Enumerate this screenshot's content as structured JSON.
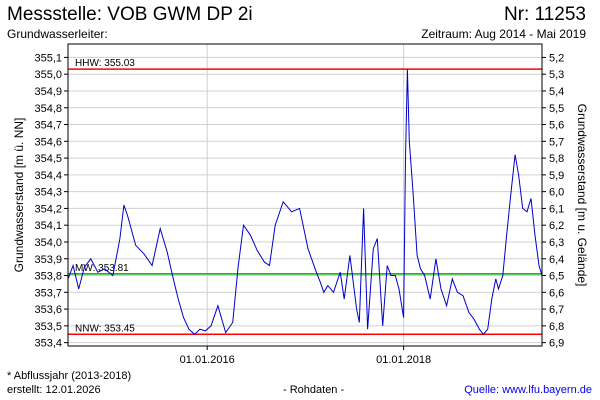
{
  "header": {
    "title": "Messstelle: VOB GWM DP 2i",
    "number": "Nr: 11253",
    "subtitle_left": "Grundwasserleiter:",
    "subtitle_right": "Zeitraum: Aug 2014 - Mai 2019"
  },
  "footer": {
    "note": "* Abflussjahr (2013-2018)",
    "created": "erstellt:  12.01.2026",
    "center": "- Rohdaten -",
    "source": "Quelle:  www.lfu.bayern.de"
  },
  "colors": {
    "line": "#0000cc",
    "high": "#ff0000",
    "mean": "#00aa00",
    "low": "#ff0000"
  },
  "chart_data": {
    "type": "line",
    "ylabel": "Grundwasserstand [m ü. NN]",
    "ylabel_right": "Grundwasserstand [m u. Gelände]",
    "ylim": [
      353.38,
      355.18
    ],
    "yticks": [
      "355,1",
      "355,0",
      "354,9",
      "354,8",
      "354,7",
      "354,6",
      "354,5",
      "354,4",
      "354,3",
      "354,2",
      "354,1",
      "354,0",
      "353,9",
      "353,8",
      "353,7",
      "353,6",
      "353,5",
      "353,4"
    ],
    "yticks_right": [
      "5,2",
      "5,3",
      "5,4",
      "5,5",
      "5,6",
      "5,7",
      "5,8",
      "5,9",
      "6,0",
      "6,1",
      "6,2",
      "6,3",
      "6,4",
      "6,5",
      "6,6",
      "6,7",
      "6,8",
      "6,9"
    ],
    "xlim": [
      "2014-08-01",
      "2019-05-31"
    ],
    "xticks": [
      "01.01.2016",
      "01.01.2018"
    ],
    "reference_lines": [
      {
        "label": "HHW: 355.03",
        "value": 355.03
      },
      {
        "label": "MW: 353.81",
        "value": 353.81
      },
      {
        "label": "NNW: 353.45",
        "value": 353.45
      }
    ],
    "series": [
      {
        "x": [
          "2014-08-01",
          "2014-08-20",
          "2014-09-10",
          "2014-10-01",
          "2014-10-25",
          "2014-11-20",
          "2014-12-15",
          "2015-01-15",
          "2015-02-10",
          "2015-02-25",
          "2015-03-10",
          "2015-04-10",
          "2015-05-10",
          "2015-06-10",
          "2015-07-10",
          "2015-08-05",
          "2015-08-25",
          "2015-09-15",
          "2015-10-05",
          "2015-10-25",
          "2015-11-15",
          "2015-12-05",
          "2015-12-25",
          "2016-01-15",
          "2016-02-10",
          "2016-03-10",
          "2016-04-05",
          "2016-04-25",
          "2016-05-15",
          "2016-06-10",
          "2016-07-05",
          "2016-08-01",
          "2016-08-20",
          "2016-09-10",
          "2016-10-10",
          "2016-11-10",
          "2016-12-10",
          "2017-01-10",
          "2017-02-10",
          "2017-02-25",
          "2017-03-10",
          "2017-03-25",
          "2017-04-15",
          "2017-05-10",
          "2017-05-25",
          "2017-06-15",
          "2017-07-10",
          "2017-07-20",
          "2017-08-05",
          "2017-08-20",
          "2017-09-10",
          "2017-09-25",
          "2017-10-15",
          "2017-11-01",
          "2017-11-15",
          "2017-12-01",
          "2017-12-15",
          "2018-01-01",
          "2018-01-08",
          "2018-01-15",
          "2018-01-22",
          "2018-02-05",
          "2018-02-20",
          "2018-03-05",
          "2018-03-20",
          "2018-04-10",
          "2018-05-01",
          "2018-05-20",
          "2018-06-10",
          "2018-07-01",
          "2018-07-20",
          "2018-08-10",
          "2018-09-01",
          "2018-09-20",
          "2018-10-10",
          "2018-10-25",
          "2018-11-10",
          "2018-11-25",
          "2018-12-10",
          "2018-12-20",
          "2019-01-05",
          "2019-01-20",
          "2019-02-05",
          "2019-02-20",
          "2019-03-05",
          "2019-03-20",
          "2019-04-05",
          "2019-04-20",
          "2019-05-05",
          "2019-05-20",
          "2019-05-31"
        ],
        "y": [
          353.78,
          353.86,
          353.72,
          353.85,
          353.9,
          353.82,
          353.84,
          353.8,
          354.02,
          354.22,
          354.16,
          353.98,
          353.93,
          353.86,
          354.08,
          353.94,
          353.8,
          353.66,
          353.55,
          353.48,
          353.45,
          353.48,
          353.47,
          353.5,
          353.62,
          353.46,
          353.52,
          353.85,
          354.1,
          354.04,
          353.95,
          353.88,
          353.86,
          354.1,
          354.24,
          354.18,
          354.2,
          353.96,
          353.82,
          353.76,
          353.7,
          353.74,
          353.7,
          353.82,
          353.66,
          353.92,
          353.6,
          353.52,
          354.2,
          353.48,
          353.96,
          354.02,
          353.5,
          353.86,
          353.8,
          353.8,
          353.72,
          353.55,
          354.5,
          355.03,
          354.6,
          354.3,
          353.92,
          353.84,
          353.8,
          353.66,
          353.9,
          353.72,
          353.62,
          353.78,
          353.7,
          353.68,
          353.58,
          353.54,
          353.48,
          353.45,
          353.48,
          353.66,
          353.78,
          353.72,
          353.8,
          354.05,
          354.3,
          354.52,
          354.4,
          354.2,
          354.18,
          354.26,
          354.04,
          353.86,
          353.8
        ]
      }
    ]
  }
}
